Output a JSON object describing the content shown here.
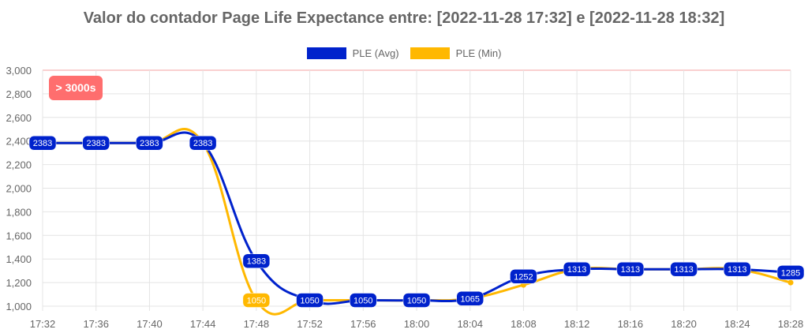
{
  "chart_data": {
    "type": "line",
    "title": "Valor do contador Page Life Expectance entre: [2022-11-28 17:32] e [2022-11-28 18:32]",
    "categories": [
      "17:32",
      "17:36",
      "17:40",
      "17:44",
      "17:48",
      "17:52",
      "17:56",
      "18:00",
      "18:04",
      "18:08",
      "18:12",
      "18:16",
      "18:20",
      "18:24",
      "18:28"
    ],
    "series": [
      {
        "name": "PLE (Avg)",
        "color": "#0022cc",
        "values": [
          2383,
          2383,
          2383,
          2383,
          1383,
          1050,
          1050,
          1050,
          1065,
          1252,
          1313,
          1313,
          1313,
          1313,
          1285
        ]
      },
      {
        "name": "PLE (Min)",
        "color": "#ffb800",
        "values": [
          2383,
          2383,
          2383,
          2383,
          1050,
          1050,
          1050,
          1050,
          1065,
          1180,
          1313,
          1313,
          1313,
          1313,
          1200
        ]
      }
    ],
    "ylim": [
      1000,
      3000
    ],
    "yticks": [
      1000,
      1200,
      1400,
      1600,
      1800,
      2000,
      2200,
      2400,
      2600,
      2800,
      3000
    ],
    "grid": true,
    "legend": "top",
    "threshold": {
      "value": 3000,
      "label": "> 3000s",
      "color": "#ff6666"
    }
  }
}
